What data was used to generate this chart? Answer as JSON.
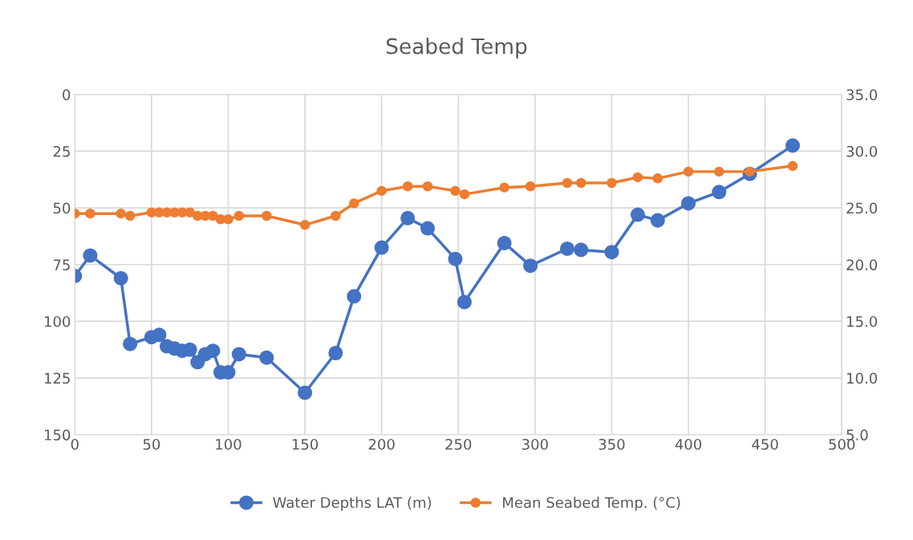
{
  "chart_data": {
    "type": "line",
    "title": "Seabed Temp",
    "x": [
      0,
      10,
      30,
      36,
      50,
      55,
      60,
      65,
      70,
      75,
      80,
      85,
      90,
      95,
      100,
      107,
      125,
      150,
      170,
      182,
      200,
      217,
      230,
      248,
      254,
      280,
      297,
      321,
      330,
      350,
      367,
      380,
      400,
      420,
      440,
      468
    ],
    "series": [
      {
        "name": "Water Depths LAT (m)",
        "color": "#4472c4",
        "values": [
          80,
          71,
          81,
          110,
          107,
          106,
          111,
          112,
          113,
          112.5,
          118,
          114.5,
          113,
          122.5,
          122.5,
          114.5,
          116,
          131.5,
          114,
          89,
          67.5,
          54.5,
          59,
          72.5,
          91.5,
          65.5,
          75.5,
          68,
          68.5,
          69.5,
          53,
          55.5,
          48,
          43,
          35,
          22.5
        ]
      },
      {
        "name": "Mean Seabed Temp. (°C)",
        "color": "#ed7d31",
        "axis": "y2",
        "values": [
          24.5,
          24.5,
          24.5,
          24.3,
          24.6,
          24.6,
          24.6,
          24.6,
          24.6,
          24.6,
          24.3,
          24.3,
          24.3,
          24.0,
          24.0,
          24.3,
          24.3,
          23.5,
          24.3,
          25.4,
          26.5,
          26.9,
          26.9,
          26.5,
          26.2,
          26.8,
          26.9,
          27.2,
          27.2,
          27.2,
          27.7,
          27.6,
          28.2,
          28.2,
          28.2,
          28.7
        ]
      }
    ],
    "xlim": [
      0,
      500
    ],
    "xticks": [
      0,
      50,
      100,
      150,
      200,
      250,
      300,
      350,
      400,
      450,
      500
    ],
    "ylim": [
      150,
      0
    ],
    "yticks": [
      0,
      25,
      50,
      75,
      100,
      125,
      150
    ],
    "y2lim": [
      5,
      35
    ],
    "y2ticks": [
      {
        "value": 5,
        "label": "5.0"
      },
      {
        "value": 10,
        "label": "10.0"
      },
      {
        "value": 15,
        "label": "15.0"
      },
      {
        "value": 20,
        "label": "20.0"
      },
      {
        "value": 25,
        "label": "25.0"
      },
      {
        "value": 30,
        "label": "30.0"
      },
      {
        "value": 35,
        "label": "35.0"
      }
    ],
    "grid": true,
    "legend": "bottom",
    "marker": "circle",
    "line_style": "solid"
  }
}
